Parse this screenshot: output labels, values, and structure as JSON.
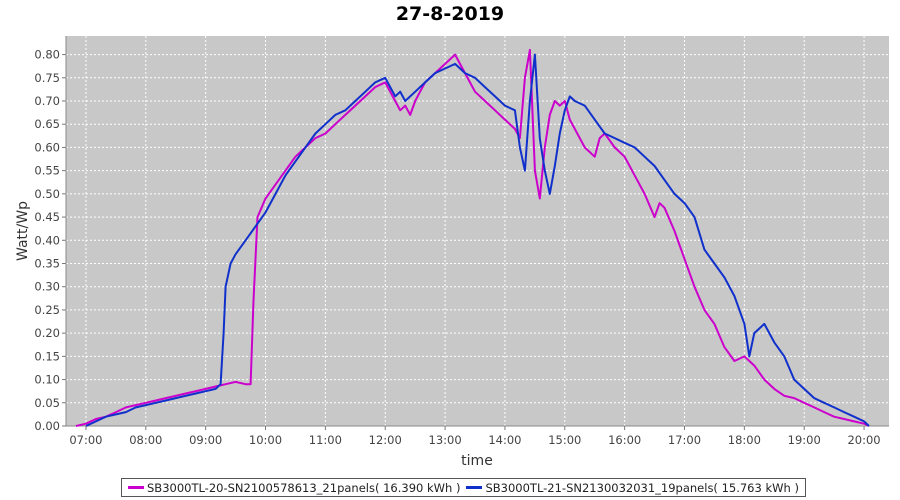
{
  "chart_data": {
    "type": "line",
    "title": "27-8-2019",
    "xlabel": "time",
    "ylabel": "Watt/Wp",
    "xlim": [
      "06:40",
      "20:25"
    ],
    "ylim": [
      0,
      0.84
    ],
    "x_ticks": [
      "07:00",
      "08:00",
      "09:00",
      "10:00",
      "11:00",
      "12:00",
      "13:00",
      "14:00",
      "15:00",
      "16:00",
      "17:00",
      "18:00",
      "19:00",
      "20:00"
    ],
    "y_ticks": [
      "0.00",
      "0.05",
      "0.10",
      "0.15",
      "0.20",
      "0.25",
      "0.30",
      "0.35",
      "0.40",
      "0.45",
      "0.50",
      "0.55",
      "0.60",
      "0.65",
      "0.70",
      "0.75",
      "0.80"
    ],
    "grid": true,
    "legend_position": "bottom",
    "series": [
      {
        "name": "SB3000TL-20-SN2100578613_21panels( 16.390 kWh )",
        "color": "#cc00cc",
        "x": [
          "06:50",
          "07:00",
          "07:10",
          "07:20",
          "07:30",
          "07:40",
          "07:50",
          "08:00",
          "08:10",
          "08:20",
          "08:30",
          "08:40",
          "08:50",
          "09:00",
          "09:10",
          "09:20",
          "09:30",
          "09:40",
          "09:45",
          "09:48",
          "09:52",
          "09:56",
          "10:00",
          "10:10",
          "10:20",
          "10:30",
          "10:40",
          "10:50",
          "11:00",
          "11:10",
          "11:20",
          "11:30",
          "11:40",
          "11:50",
          "12:00",
          "12:05",
          "12:10",
          "12:15",
          "12:20",
          "12:25",
          "12:30",
          "12:35",
          "12:40",
          "12:50",
          "13:00",
          "13:10",
          "13:15",
          "13:20",
          "13:25",
          "13:30",
          "13:40",
          "13:50",
          "14:00",
          "14:10",
          "14:15",
          "14:20",
          "14:25",
          "14:30",
          "14:35",
          "14:40",
          "14:45",
          "14:50",
          "14:55",
          "15:00",
          "15:05",
          "15:10",
          "15:20",
          "15:30",
          "15:35",
          "15:40",
          "15:50",
          "16:00",
          "16:05",
          "16:10",
          "16:20",
          "16:30",
          "16:35",
          "16:40",
          "16:50",
          "17:00",
          "17:05",
          "17:10",
          "17:20",
          "17:30",
          "17:40",
          "17:50",
          "18:00",
          "18:10",
          "18:20",
          "18:30",
          "18:40",
          "18:50",
          "19:00",
          "19:10",
          "19:20",
          "19:30",
          "19:40",
          "19:50",
          "20:00",
          "20:05"
        ],
        "values": [
          0.0,
          0.005,
          0.015,
          0.02,
          0.03,
          0.04,
          0.045,
          0.05,
          0.055,
          0.06,
          0.065,
          0.07,
          0.075,
          0.08,
          0.085,
          0.09,
          0.095,
          0.09,
          0.09,
          0.27,
          0.45,
          0.47,
          0.49,
          0.52,
          0.55,
          0.58,
          0.6,
          0.62,
          0.63,
          0.65,
          0.67,
          0.69,
          0.71,
          0.73,
          0.74,
          0.72,
          0.7,
          0.68,
          0.69,
          0.67,
          0.7,
          0.72,
          0.74,
          0.76,
          0.78,
          0.8,
          0.78,
          0.76,
          0.74,
          0.72,
          0.7,
          0.68,
          0.66,
          0.64,
          0.62,
          0.75,
          0.81,
          0.55,
          0.49,
          0.6,
          0.67,
          0.7,
          0.69,
          0.7,
          0.66,
          0.64,
          0.6,
          0.58,
          0.62,
          0.63,
          0.6,
          0.58,
          0.56,
          0.54,
          0.5,
          0.45,
          0.48,
          0.47,
          0.42,
          0.36,
          0.33,
          0.3,
          0.25,
          0.22,
          0.17,
          0.14,
          0.15,
          0.13,
          0.1,
          0.08,
          0.065,
          0.06,
          0.05,
          0.04,
          0.03,
          0.02,
          0.015,
          0.01,
          0.005,
          0.0
        ]
      },
      {
        "name": "SB3000TL-21-SN2130032031_19panels( 15.763 kWh )",
        "color": "#1030cc",
        "x": [
          "07:00",
          "07:10",
          "07:20",
          "07:30",
          "07:40",
          "07:50",
          "08:00",
          "08:10",
          "08:20",
          "08:30",
          "08:40",
          "08:50",
          "09:00",
          "09:10",
          "09:15",
          "09:18",
          "09:20",
          "09:25",
          "09:30",
          "09:40",
          "09:50",
          "10:00",
          "10:10",
          "10:20",
          "10:30",
          "10:40",
          "10:50",
          "11:00",
          "11:10",
          "11:20",
          "11:30",
          "11:40",
          "11:50",
          "12:00",
          "12:05",
          "12:10",
          "12:15",
          "12:20",
          "12:30",
          "12:40",
          "12:50",
          "13:00",
          "13:10",
          "13:20",
          "13:30",
          "13:40",
          "13:50",
          "14:00",
          "14:10",
          "14:15",
          "14:20",
          "14:25",
          "14:30",
          "14:35",
          "14:40",
          "14:45",
          "14:50",
          "14:55",
          "15:00",
          "15:05",
          "15:10",
          "15:20",
          "15:30",
          "15:40",
          "15:50",
          "16:00",
          "16:10",
          "16:20",
          "16:30",
          "16:40",
          "16:50",
          "17:00",
          "17:10",
          "17:20",
          "17:30",
          "17:40",
          "17:50",
          "18:00",
          "18:05",
          "18:10",
          "18:20",
          "18:30",
          "18:40",
          "18:50",
          "19:00",
          "19:10",
          "19:20",
          "19:30",
          "19:40",
          "19:50",
          "20:00",
          "20:05"
        ],
        "values": [
          0.0,
          0.01,
          0.02,
          0.025,
          0.03,
          0.04,
          0.045,
          0.05,
          0.055,
          0.06,
          0.065,
          0.07,
          0.075,
          0.08,
          0.09,
          0.2,
          0.3,
          0.35,
          0.37,
          0.4,
          0.43,
          0.46,
          0.5,
          0.54,
          0.57,
          0.6,
          0.63,
          0.65,
          0.67,
          0.68,
          0.7,
          0.72,
          0.74,
          0.75,
          0.73,
          0.71,
          0.72,
          0.7,
          0.72,
          0.74,
          0.76,
          0.77,
          0.78,
          0.76,
          0.75,
          0.73,
          0.71,
          0.69,
          0.68,
          0.6,
          0.55,
          0.7,
          0.8,
          0.62,
          0.55,
          0.5,
          0.56,
          0.63,
          0.68,
          0.71,
          0.7,
          0.69,
          0.66,
          0.63,
          0.62,
          0.61,
          0.6,
          0.58,
          0.56,
          0.53,
          0.5,
          0.48,
          0.45,
          0.38,
          0.35,
          0.32,
          0.28,
          0.22,
          0.15,
          0.2,
          0.22,
          0.18,
          0.15,
          0.1,
          0.08,
          0.06,
          0.05,
          0.04,
          0.03,
          0.02,
          0.01,
          0.0
        ]
      }
    ]
  }
}
